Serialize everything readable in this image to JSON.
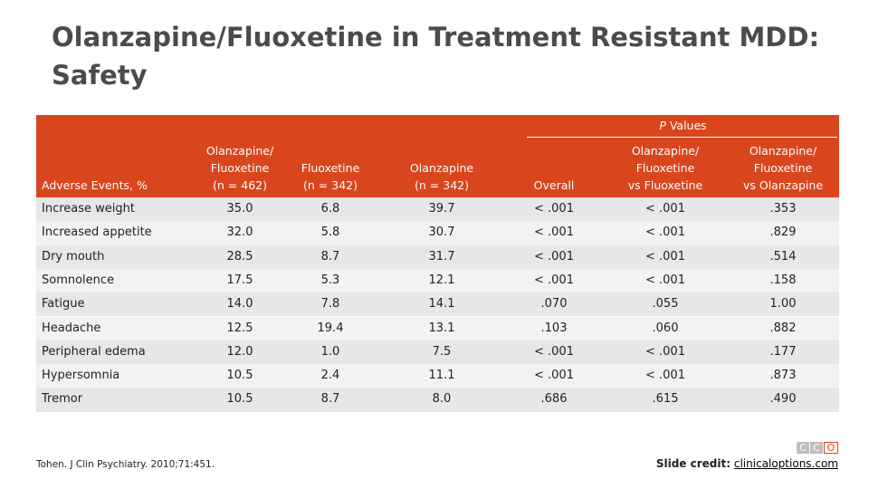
{
  "header": {
    "title": [
      "Olanzapine/Fluoxetine in Treatment Resistant MDD:",
      "Safety"
    ]
  },
  "table": {
    "group_label": [
      "P",
      "Values"
    ],
    "columns": [
      [
        "Adverse Events, %"
      ],
      [
        "Olanzapine/",
        "Fluoxetine",
        "(n = 462)"
      ],
      [
        "Fluoxetine",
        "(n = 342)"
      ],
      [
        "Olanzapine",
        "(n = 342)"
      ],
      [
        "Overall"
      ],
      [
        "Olanzapine/",
        "Fluoxetine",
        "vs Fluoxetine"
      ],
      [
        "Olanzapine/",
        "Fluoxetine",
        "vs Olanzapine"
      ]
    ],
    "rows": [
      [
        "Increase weight",
        "35.0",
        "6.8",
        "39.7",
        "< .001",
        "< .001",
        ".353"
      ],
      [
        "Increased appetite",
        "32.0",
        "5.8",
        "30.7",
        "< .001",
        "< .001",
        ".829"
      ],
      [
        "Dry mouth",
        "28.5",
        "8.7",
        "31.7",
        "< .001",
        "< .001",
        ".514"
      ],
      [
        "Somnolence",
        "17.5",
        "5.3",
        "12.1",
        "< .001",
        "< .001",
        ".158"
      ],
      [
        "Fatigue",
        "14.0",
        "7.8",
        "14.1",
        ".070",
        ".055",
        "1.00"
      ],
      [
        "Headache",
        "12.5",
        "19.4",
        "13.1",
        ".103",
        ".060",
        ".882"
      ],
      [
        "Peripheral edema",
        "12.0",
        "1.0",
        "7.5",
        "< .001",
        "< .001",
        ".177"
      ],
      [
        "Hypersomnia",
        "10.5",
        "2.4",
        "11.1",
        "< .001",
        "< .001",
        ".873"
      ],
      [
        "Tremor",
        "10.5",
        "8.7",
        "8.0",
        ".686",
        ".615",
        ".490"
      ]
    ]
  },
  "footer": {
    "reference": "Tohen. J Clin Psychiatry. 2010;71:451.",
    "credit_label": "Slide credit:",
    "credit_link": "clinicaloptions.com",
    "logo": [
      "C",
      "C",
      "O"
    ]
  }
}
